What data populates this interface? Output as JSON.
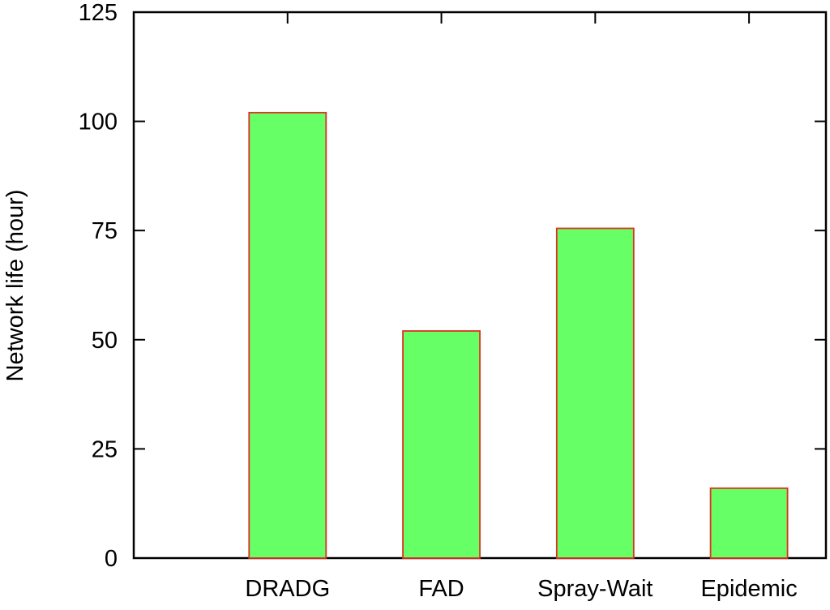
{
  "chart_data": {
    "type": "bar",
    "title": "",
    "xlabel": "",
    "ylabel": "Network life (hour)",
    "categories": [
      "DRADG",
      "FAD",
      "Spray-Wait",
      "Epidemic"
    ],
    "values": [
      102,
      52,
      75.5,
      16
    ],
    "ylim": [
      0,
      125
    ],
    "yticks": [
      "0",
      "25",
      "50",
      "75",
      "100",
      "125"
    ],
    "grid": false,
    "legend": "none",
    "colors": {
      "bar_fill": "#66ff66",
      "bar_stroke": "#e03020",
      "axis": "#000000"
    }
  }
}
